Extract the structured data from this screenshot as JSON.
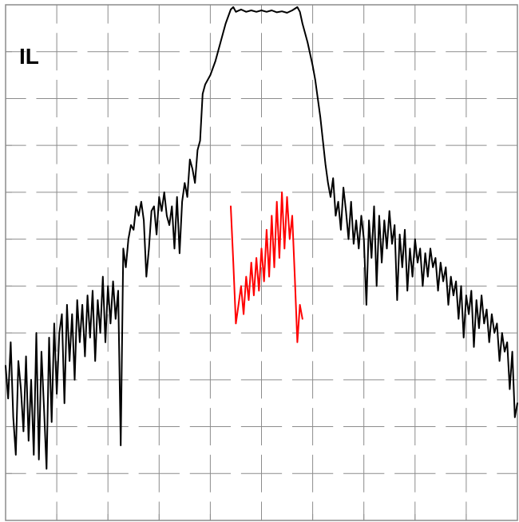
{
  "chart_data": {
    "type": "line",
    "title": "",
    "label": "IL",
    "xlabel": "",
    "ylabel": "",
    "xlim": [
      0,
      10
    ],
    "ylim": [
      -11,
      0
    ],
    "grid": true,
    "legend": "none",
    "series": [
      {
        "color": "#000000",
        "stroke_width": 2,
        "points": [
          [
            0.0,
            -7.7
          ],
          [
            0.05,
            -8.4
          ],
          [
            0.1,
            -7.2
          ],
          [
            0.15,
            -8.8
          ],
          [
            0.2,
            -9.6
          ],
          [
            0.25,
            -7.6
          ],
          [
            0.3,
            -8.2
          ],
          [
            0.35,
            -9.1
          ],
          [
            0.4,
            -7.5
          ],
          [
            0.45,
            -9.3
          ],
          [
            0.5,
            -8.0
          ],
          [
            0.55,
            -9.6
          ],
          [
            0.6,
            -7.0
          ],
          [
            0.65,
            -9.7
          ],
          [
            0.7,
            -7.4
          ],
          [
            0.75,
            -8.6
          ],
          [
            0.8,
            -9.9
          ],
          [
            0.85,
            -7.1
          ],
          [
            0.9,
            -8.9
          ],
          [
            0.95,
            -6.8
          ],
          [
            1.0,
            -8.3
          ],
          [
            1.05,
            -7.0
          ],
          [
            1.1,
            -6.6
          ],
          [
            1.15,
            -8.5
          ],
          [
            1.2,
            -6.4
          ],
          [
            1.25,
            -7.6
          ],
          [
            1.3,
            -6.6
          ],
          [
            1.35,
            -8.0
          ],
          [
            1.4,
            -6.3
          ],
          [
            1.45,
            -7.2
          ],
          [
            1.5,
            -6.4
          ],
          [
            1.55,
            -7.5
          ],
          [
            1.6,
            -6.2
          ],
          [
            1.65,
            -7.1
          ],
          [
            1.7,
            -6.1
          ],
          [
            1.75,
            -7.6
          ],
          [
            1.8,
            -6.3
          ],
          [
            1.85,
            -7.0
          ],
          [
            1.9,
            -5.8
          ],
          [
            1.95,
            -7.2
          ],
          [
            2.0,
            -6.0
          ],
          [
            2.05,
            -6.8
          ],
          [
            2.1,
            -5.9
          ],
          [
            2.15,
            -6.7
          ],
          [
            2.2,
            -6.1
          ],
          [
            2.25,
            -9.4
          ],
          [
            2.3,
            -5.2
          ],
          [
            2.35,
            -5.6
          ],
          [
            2.4,
            -5.0
          ],
          [
            2.45,
            -4.7
          ],
          [
            2.5,
            -4.8
          ],
          [
            2.55,
            -4.3
          ],
          [
            2.6,
            -4.5
          ],
          [
            2.65,
            -4.2
          ],
          [
            2.7,
            -4.6
          ],
          [
            2.75,
            -5.8
          ],
          [
            2.8,
            -5.2
          ],
          [
            2.85,
            -4.4
          ],
          [
            2.9,
            -4.3
          ],
          [
            2.95,
            -4.9
          ],
          [
            3.0,
            -4.1
          ],
          [
            3.05,
            -4.4
          ],
          [
            3.1,
            -4.0
          ],
          [
            3.15,
            -4.5
          ],
          [
            3.2,
            -4.7
          ],
          [
            3.25,
            -4.3
          ],
          [
            3.3,
            -5.2
          ],
          [
            3.35,
            -4.1
          ],
          [
            3.4,
            -5.3
          ],
          [
            3.45,
            -4.2
          ],
          [
            3.5,
            -3.8
          ],
          [
            3.55,
            -4.1
          ],
          [
            3.6,
            -3.3
          ],
          [
            3.65,
            -3.5
          ],
          [
            3.7,
            -3.8
          ],
          [
            3.75,
            -3.1
          ],
          [
            3.8,
            -2.9
          ],
          [
            3.85,
            -1.9
          ],
          [
            3.9,
            -1.7
          ],
          [
            4.0,
            -1.5
          ],
          [
            4.1,
            -1.2
          ],
          [
            4.2,
            -0.8
          ],
          [
            4.3,
            -0.4
          ],
          [
            4.4,
            -0.1
          ],
          [
            4.45,
            -0.05
          ],
          [
            4.5,
            -0.15
          ],
          [
            4.6,
            -0.1
          ],
          [
            4.7,
            -0.15
          ],
          [
            4.8,
            -0.12
          ],
          [
            4.9,
            -0.15
          ],
          [
            5.0,
            -0.12
          ],
          [
            5.1,
            -0.15
          ],
          [
            5.2,
            -0.12
          ],
          [
            5.3,
            -0.16
          ],
          [
            5.4,
            -0.14
          ],
          [
            5.5,
            -0.17
          ],
          [
            5.6,
            -0.12
          ],
          [
            5.7,
            -0.05
          ],
          [
            5.75,
            -0.15
          ],
          [
            5.8,
            -0.4
          ],
          [
            5.9,
            -0.8
          ],
          [
            6.0,
            -1.3
          ],
          [
            6.05,
            -1.6
          ],
          [
            6.1,
            -2.0
          ],
          [
            6.15,
            -2.4
          ],
          [
            6.2,
            -2.9
          ],
          [
            6.25,
            -3.4
          ],
          [
            6.3,
            -3.8
          ],
          [
            6.35,
            -4.1
          ],
          [
            6.4,
            -3.7
          ],
          [
            6.45,
            -4.5
          ],
          [
            6.5,
            -4.2
          ],
          [
            6.55,
            -4.8
          ],
          [
            6.6,
            -3.9
          ],
          [
            6.65,
            -4.4
          ],
          [
            6.7,
            -5.0
          ],
          [
            6.75,
            -4.2
          ],
          [
            6.8,
            -5.1
          ],
          [
            6.85,
            -4.6
          ],
          [
            6.9,
            -5.2
          ],
          [
            6.95,
            -4.5
          ],
          [
            7.0,
            -5.0
          ],
          [
            7.05,
            -6.4
          ],
          [
            7.1,
            -4.6
          ],
          [
            7.15,
            -5.4
          ],
          [
            7.2,
            -4.3
          ],
          [
            7.25,
            -6.0
          ],
          [
            7.3,
            -4.5
          ],
          [
            7.35,
            -5.5
          ],
          [
            7.4,
            -4.6
          ],
          [
            7.45,
            -5.2
          ],
          [
            7.5,
            -4.4
          ],
          [
            7.55,
            -5.1
          ],
          [
            7.6,
            -4.7
          ],
          [
            7.65,
            -6.3
          ],
          [
            7.7,
            -4.9
          ],
          [
            7.75,
            -5.6
          ],
          [
            7.8,
            -4.8
          ],
          [
            7.85,
            -6.1
          ],
          [
            7.9,
            -5.2
          ],
          [
            7.95,
            -5.8
          ],
          [
            8.0,
            -5.0
          ],
          [
            8.05,
            -5.5
          ],
          [
            8.1,
            -5.2
          ],
          [
            8.15,
            -6.0
          ],
          [
            8.2,
            -5.3
          ],
          [
            8.25,
            -5.8
          ],
          [
            8.3,
            -5.2
          ],
          [
            8.35,
            -5.6
          ],
          [
            8.4,
            -5.4
          ],
          [
            8.45,
            -6.1
          ],
          [
            8.5,
            -5.5
          ],
          [
            8.55,
            -5.9
          ],
          [
            8.6,
            -5.6
          ],
          [
            8.65,
            -6.4
          ],
          [
            8.7,
            -5.8
          ],
          [
            8.75,
            -6.2
          ],
          [
            8.8,
            -5.9
          ],
          [
            8.85,
            -6.7
          ],
          [
            8.9,
            -6.0
          ],
          [
            8.95,
            -7.1
          ],
          [
            9.0,
            -6.2
          ],
          [
            9.05,
            -6.6
          ],
          [
            9.1,
            -6.1
          ],
          [
            9.15,
            -7.3
          ],
          [
            9.2,
            -6.3
          ],
          [
            9.25,
            -6.9
          ],
          [
            9.3,
            -6.2
          ],
          [
            9.35,
            -6.8
          ],
          [
            9.4,
            -6.5
          ],
          [
            9.45,
            -7.2
          ],
          [
            9.5,
            -6.6
          ],
          [
            9.55,
            -7.0
          ],
          [
            9.6,
            -6.8
          ],
          [
            9.65,
            -7.6
          ],
          [
            9.7,
            -7.0
          ],
          [
            9.75,
            -7.4
          ],
          [
            9.8,
            -7.2
          ],
          [
            9.85,
            -8.2
          ],
          [
            9.9,
            -7.4
          ],
          [
            9.95,
            -8.8
          ],
          [
            10.0,
            -8.5
          ]
        ]
      },
      {
        "color": "#ff0000",
        "stroke_width": 2,
        "points": [
          [
            4.4,
            -4.3
          ],
          [
            4.45,
            -5.5
          ],
          [
            4.5,
            -6.8
          ],
          [
            4.55,
            -6.4
          ],
          [
            4.6,
            -6.0
          ],
          [
            4.65,
            -6.6
          ],
          [
            4.7,
            -5.8
          ],
          [
            4.75,
            -6.3
          ],
          [
            4.8,
            -5.5
          ],
          [
            4.85,
            -6.2
          ],
          [
            4.9,
            -5.4
          ],
          [
            4.95,
            -6.1
          ],
          [
            5.0,
            -5.2
          ],
          [
            5.05,
            -5.9
          ],
          [
            5.1,
            -4.8
          ],
          [
            5.15,
            -5.8
          ],
          [
            5.2,
            -4.5
          ],
          [
            5.25,
            -5.6
          ],
          [
            5.3,
            -4.2
          ],
          [
            5.35,
            -5.4
          ],
          [
            5.4,
            -4.0
          ],
          [
            5.45,
            -5.2
          ],
          [
            5.5,
            -4.1
          ],
          [
            5.55,
            -5.0
          ],
          [
            5.6,
            -4.5
          ],
          [
            5.65,
            -5.8
          ],
          [
            5.7,
            -7.2
          ],
          [
            5.75,
            -6.4
          ],
          [
            5.8,
            -6.7
          ]
        ]
      }
    ]
  }
}
